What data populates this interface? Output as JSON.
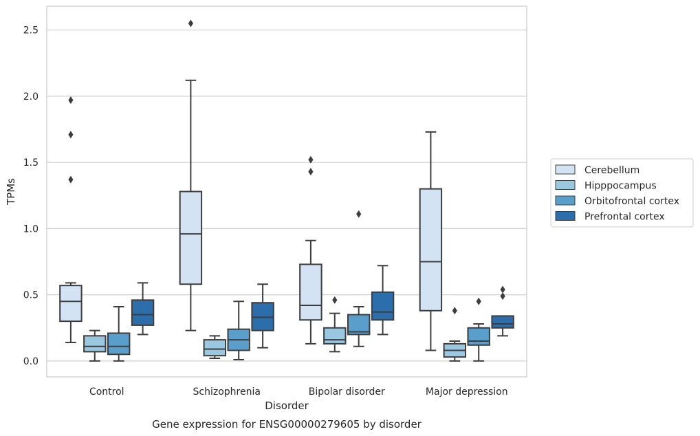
{
  "chart_data": {
    "type": "box",
    "caption": "Gene expression for ENSG00000279605 by disorder",
    "xlabel": "Disorder",
    "ylabel": "TPMs",
    "ylim": [
      -0.12,
      2.68
    ],
    "yticks": [
      "0.0",
      "0.5",
      "1.0",
      "1.5",
      "2.0",
      "2.5"
    ],
    "ytick_values": [
      0.0,
      0.5,
      1.0,
      1.5,
      2.0,
      2.5
    ],
    "grid": "horizontal",
    "legend_position": "right",
    "categories": [
      "Control",
      "Schizophrenia",
      "Bipolar disorder",
      "Major depression"
    ],
    "series": [
      {
        "name": "Cerebellum",
        "color": "#d3e3f3",
        "boxes": [
          {
            "whislo": 0.14,
            "q1": 0.3,
            "med": 0.45,
            "q3": 0.57,
            "whishi": 0.59,
            "fliers": [
              1.37,
              1.71,
              1.97
            ]
          },
          {
            "whislo": 0.23,
            "q1": 0.58,
            "med": 0.96,
            "q3": 1.28,
            "whishi": 2.12,
            "fliers": [
              2.55
            ]
          },
          {
            "whislo": 0.13,
            "q1": 0.31,
            "med": 0.42,
            "q3": 0.73,
            "whishi": 0.91,
            "fliers": [
              1.43,
              1.52
            ]
          },
          {
            "whislo": 0.08,
            "q1": 0.38,
            "med": 0.75,
            "q3": 1.3,
            "whishi": 1.73,
            "fliers": []
          }
        ]
      },
      {
        "name": "Hipppocampus",
        "color": "#9ac8e0",
        "boxes": [
          {
            "whislo": 0.0,
            "q1": 0.07,
            "med": 0.11,
            "q3": 0.19,
            "whishi": 0.23,
            "fliers": []
          },
          {
            "whislo": 0.02,
            "q1": 0.04,
            "med": 0.09,
            "q3": 0.16,
            "whishi": 0.19,
            "fliers": []
          },
          {
            "whislo": 0.07,
            "q1": 0.13,
            "med": 0.16,
            "q3": 0.25,
            "whishi": 0.36,
            "fliers": [
              0.46
            ]
          },
          {
            "whislo": 0.0,
            "q1": 0.03,
            "med": 0.08,
            "q3": 0.13,
            "whishi": 0.15,
            "fliers": [
              0.38
            ]
          }
        ]
      },
      {
        "name": "Orbitofrontal cortex",
        "color": "#5a9fcc",
        "boxes": [
          {
            "whislo": 0.0,
            "q1": 0.05,
            "med": 0.11,
            "q3": 0.21,
            "whishi": 0.41,
            "fliers": []
          },
          {
            "whislo": 0.01,
            "q1": 0.08,
            "med": 0.16,
            "q3": 0.24,
            "whishi": 0.45,
            "fliers": []
          },
          {
            "whislo": 0.11,
            "q1": 0.2,
            "med": 0.22,
            "q3": 0.35,
            "whishi": 0.41,
            "fliers": [
              1.11
            ]
          },
          {
            "whislo": 0.0,
            "q1": 0.12,
            "med": 0.15,
            "q3": 0.25,
            "whishi": 0.28,
            "fliers": [
              0.45
            ]
          }
        ]
      },
      {
        "name": "Prefrontal cortex",
        "color": "#2c6eab",
        "boxes": [
          {
            "whislo": 0.2,
            "q1": 0.27,
            "med": 0.35,
            "q3": 0.46,
            "whishi": 0.59,
            "fliers": []
          },
          {
            "whislo": 0.1,
            "q1": 0.23,
            "med": 0.33,
            "q3": 0.44,
            "whishi": 0.58,
            "fliers": []
          },
          {
            "whislo": 0.2,
            "q1": 0.31,
            "med": 0.37,
            "q3": 0.52,
            "whishi": 0.72,
            "fliers": []
          },
          {
            "whislo": 0.19,
            "q1": 0.25,
            "med": 0.28,
            "q3": 0.34,
            "whishi": 0.34,
            "fliers": [
              0.49,
              0.54
            ]
          }
        ]
      }
    ]
  }
}
